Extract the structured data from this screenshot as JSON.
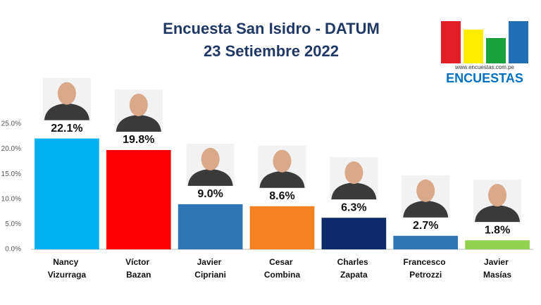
{
  "chart_data": {
    "type": "bar",
    "title": "Encuesta San Isidro - DATUM",
    "subtitle": "23 Setiembre 2022",
    "categories": [
      "Nancy Vizurraga",
      "Víctor Bazan",
      "Javier Cipriani",
      "Cesar Combina",
      "Charles Zapata",
      "Francesco Petrozzi",
      "Javier Masías"
    ],
    "values": [
      22.1,
      19.8,
      9.0,
      8.6,
      6.3,
      2.7,
      1.8
    ],
    "value_labels": [
      "22.1%",
      "19.8%",
      "9.0%",
      "8.6%",
      "6.3%",
      "2.7%",
      "1.8%"
    ],
    "colors": [
      "#00b0f0",
      "#ff0000",
      "#2e75b6",
      "#f58220",
      "#0d2a6b",
      "#2e75b6",
      "#92d050"
    ],
    "ylim": [
      0,
      25
    ],
    "yticks": [
      {
        "value": 0,
        "label": "0.0%"
      },
      {
        "value": 5,
        "label": "5.0%"
      },
      {
        "value": 10,
        "label": "10.0%"
      },
      {
        "value": 15,
        "label": "15.0%"
      },
      {
        "value": 20,
        "label": "20.0%"
      },
      {
        "value": 25,
        "label": "25.0%"
      }
    ],
    "grid": false
  },
  "logo": {
    "url": "www.encuestas.com.pe",
    "name": "ENCUESTAS"
  }
}
